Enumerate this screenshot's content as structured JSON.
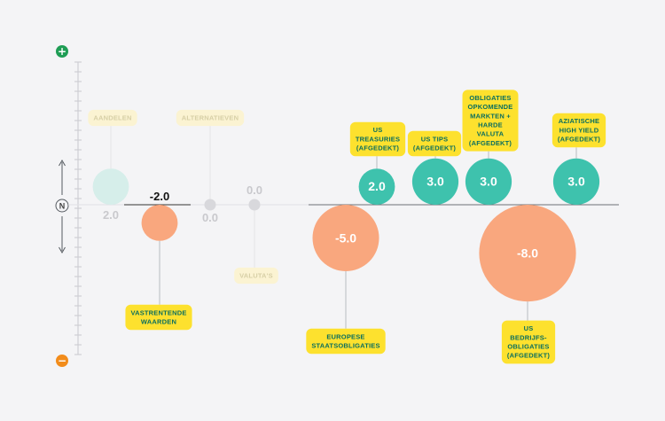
{
  "scale": {
    "plus_symbol": "+",
    "minus_symbol": "−",
    "neutral_symbol": "N",
    "plus_color": "#1f9d55",
    "minus_color": "#f28c1b"
  },
  "colors": {
    "positive": "#3ec2ad",
    "negative": "#f9a77e",
    "neutral": "#d8d8dc",
    "faded_positive": "#d6eeea",
    "label_bg": "#fde12e",
    "label_text": "#0a6e5e",
    "faded_label_bg": "#fbf3d2",
    "faded_label_text": "#d7cfa6"
  },
  "chart_data": {
    "type": "bubble",
    "title": "",
    "xlabel": "",
    "ylabel": "",
    "categories": [
      "AANDELEN",
      "VASTRENTENDE WAARDEN",
      "ALTERNATIEVEN",
      "VALUTA'S",
      "EUROPESE STAATSOBLIGATIES",
      "US TREASURIES (AFGEDEKT)",
      "US TIPS (AFGEDEKT)",
      "OBLIGATIES OPKOMENDE MARKTEN + HARDE VALUTA (AFGEDEKT)",
      "US BEDRIJFS-OBLIGATIES (AFGEDEKT)",
      "AZIATISCHE HIGH YIELD (AFGEDEKT)"
    ],
    "values": [
      2.0,
      -2.0,
      0.0,
      0.0,
      -5.0,
      2.0,
      3.0,
      3.0,
      -8.0,
      3.0
    ],
    "value_labels": [
      "2.0",
      "-2.0",
      "0.0",
      "0.0",
      "-5.0",
      "2.0",
      "3.0",
      "3.0",
      "-8.0",
      "3.0"
    ],
    "faded": [
      true,
      false,
      true,
      true,
      false,
      false,
      false,
      false,
      false,
      false
    ],
    "label_lines": [
      [
        "AANDELEN"
      ],
      [
        "VASTRENTENDE",
        "WAARDEN"
      ],
      [
        "ALTERNATIEVEN"
      ],
      [
        "VALUTA'S"
      ],
      [
        "EUROPESE",
        "STAATSOBLIGATIES"
      ],
      [
        "US",
        "TREASURIES",
        "(AFGEDEKT)"
      ],
      [
        "US TIPS",
        "(AFGEDEKT)"
      ],
      [
        "OBLIGATIES",
        "OPKOMENDE",
        "MARKTEN +",
        "HARDE",
        "VALUTA",
        "(AFGEDEKT)"
      ],
      [
        "US",
        "BEDRIJFS-",
        "OBLIGATIES",
        "(AFGEDEKT)"
      ],
      [
        "AZIATISCHE",
        "HIGH YIELD",
        "(AFGEDEKT)"
      ]
    ],
    "label_position": [
      "above",
      "below",
      "above",
      "below",
      "below",
      "above",
      "above",
      "above",
      "below",
      "above"
    ],
    "value_position": [
      "below",
      "above",
      "below",
      "above",
      "inside",
      "inside",
      "inside",
      "inside",
      "inside",
      "inside"
    ]
  }
}
